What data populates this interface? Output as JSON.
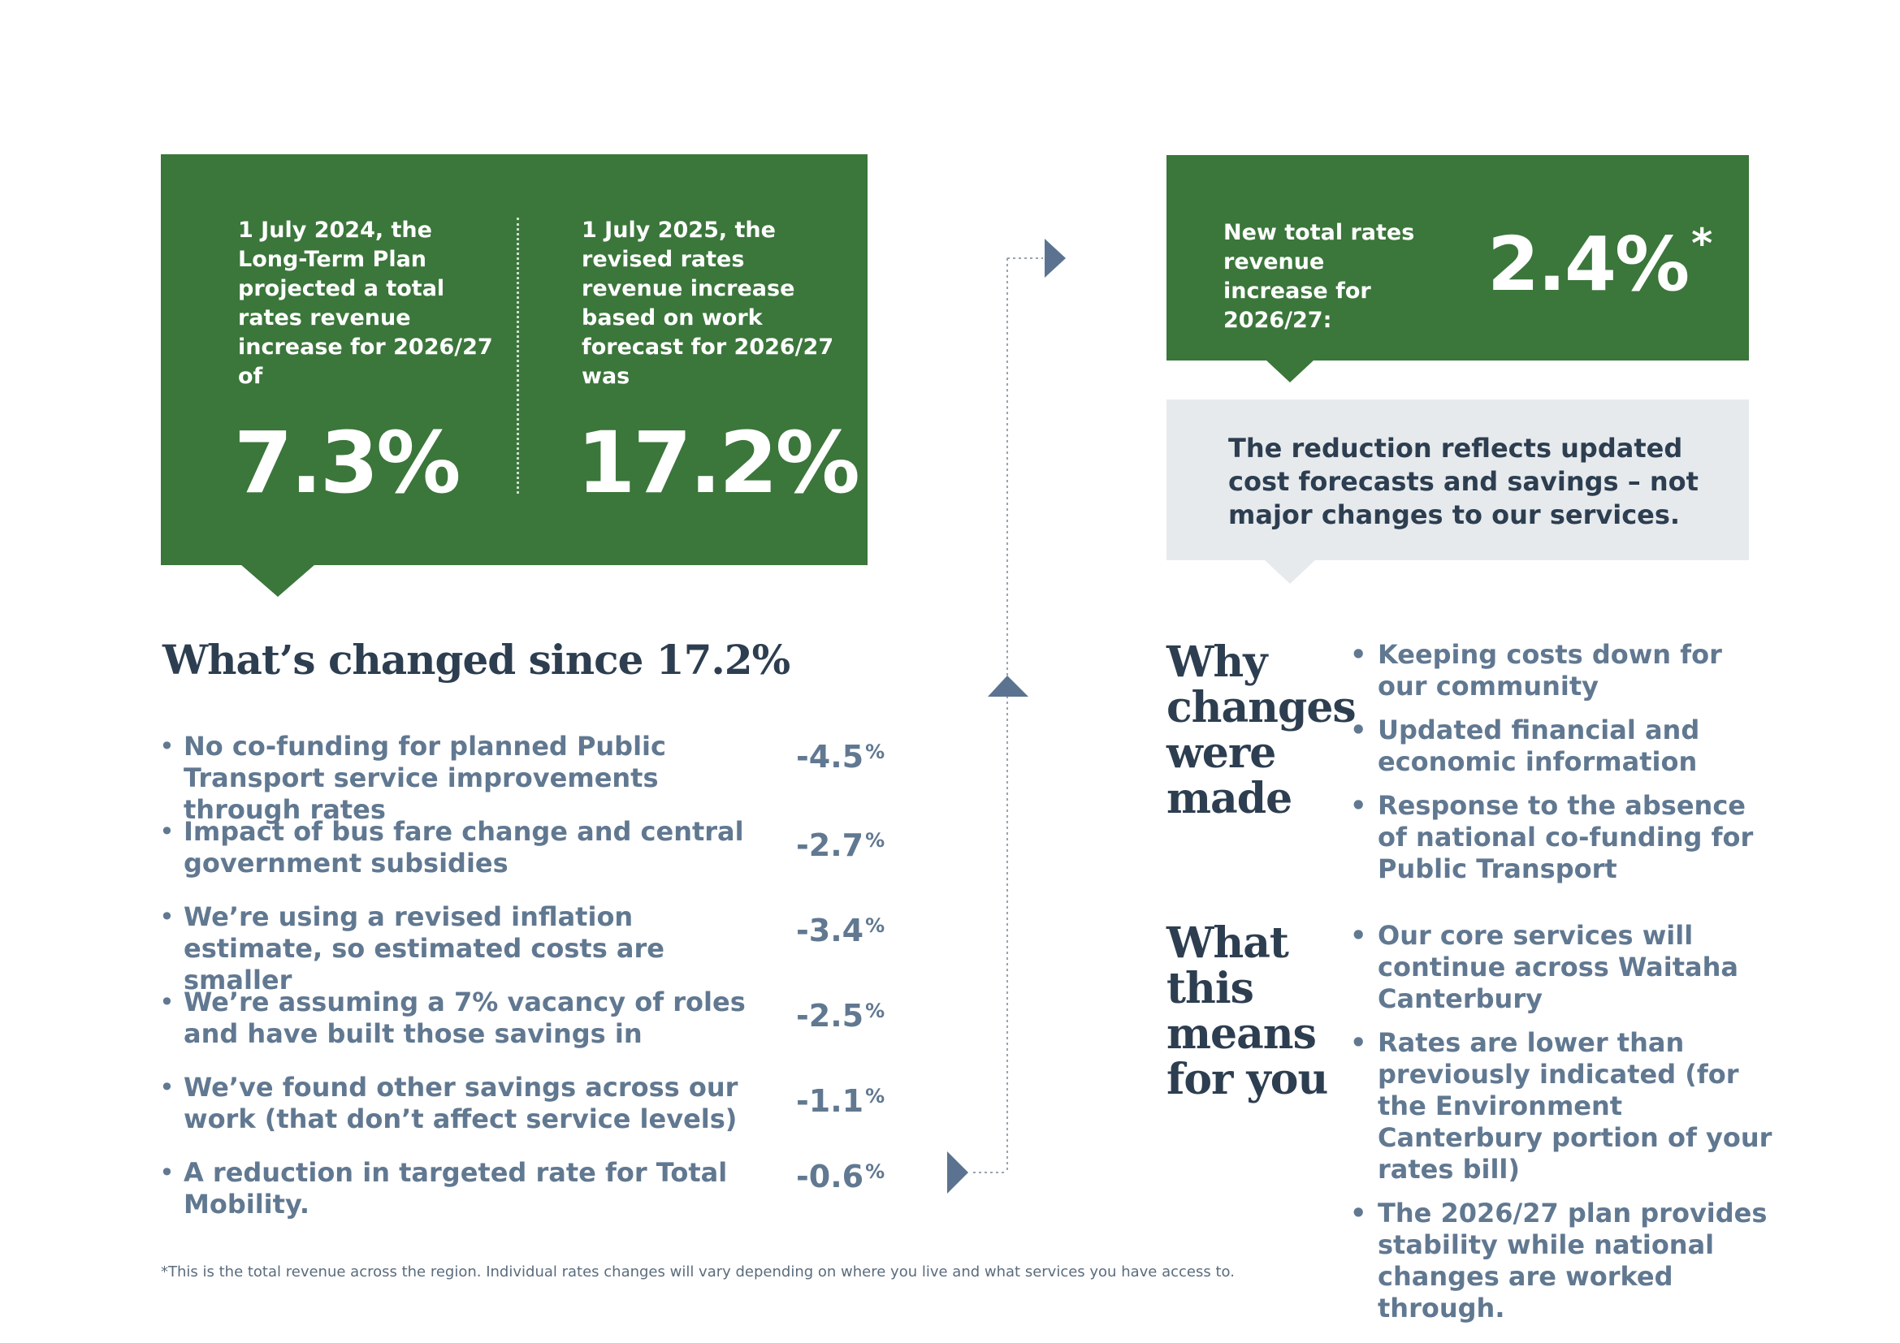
{
  "left_card": {
    "col1_text": "1 July 2024, the Long-Term Plan projected a total rates revenue increase for 2026/27 of",
    "col1_value": "7.3%",
    "col2_text": "1 July 2025, the revised rates revenue increase based on work forecast for 2026/27 was",
    "col2_value": "17.2%"
  },
  "right_card": {
    "label": "New total rates revenue increase for 2026/27:",
    "value": "2.4%",
    "asterisk": "*"
  },
  "note_box": {
    "text": "The reduction reflects updated cost forecasts and savings – not major changes to our services."
  },
  "changes": {
    "heading": "What’s changed since 17.2%",
    "bullet": "•",
    "percent_sign": "%",
    "items": [
      {
        "text": "No co-funding for planned Public Transport service improvements through rates",
        "value": "-4.5"
      },
      {
        "text": "Impact of bus fare change and central government subsidies",
        "value": "-2.7"
      },
      {
        "text": "We’re using a revised inflation estimate, so estimated costs are smaller",
        "value": "-3.4"
      },
      {
        "text": "We’re assuming a 7% vacancy of roles and have built those savings in",
        "value": "-2.5"
      },
      {
        "text": "We’ve found other savings across our work (that don’t affect service levels)",
        "value": "-1.1"
      },
      {
        "text": "A reduction in targeted rate for Total Mobility.",
        "value": "-0.6"
      }
    ]
  },
  "why": {
    "heading_lines": [
      "Why",
      "changes",
      "were",
      "made"
    ],
    "items": [
      "Keeping costs down for our community",
      "Updated financial and economic information",
      "Response to the absence of national co-funding for Public Transport"
    ]
  },
  "means": {
    "heading_lines": [
      "What",
      "this",
      "means",
      "for you"
    ],
    "items": [
      "Our core services will continue across Waitaha Canterbury",
      "Rates are lower than previously indicated (for the Environment Canterbury portion of your rates bill)",
      "The 2026/27 plan provides stability while national changes are worked through."
    ]
  },
  "footnote": "*This is the total revenue across the region. Individual rates changes will vary depending on where you live and what services you have access to.",
  "colors": {
    "green": "#3b763b",
    "navy": "#2d3e50",
    "slate": "#617891",
    "grey_box": "#e6eaed",
    "arrow": "#5b7390"
  }
}
